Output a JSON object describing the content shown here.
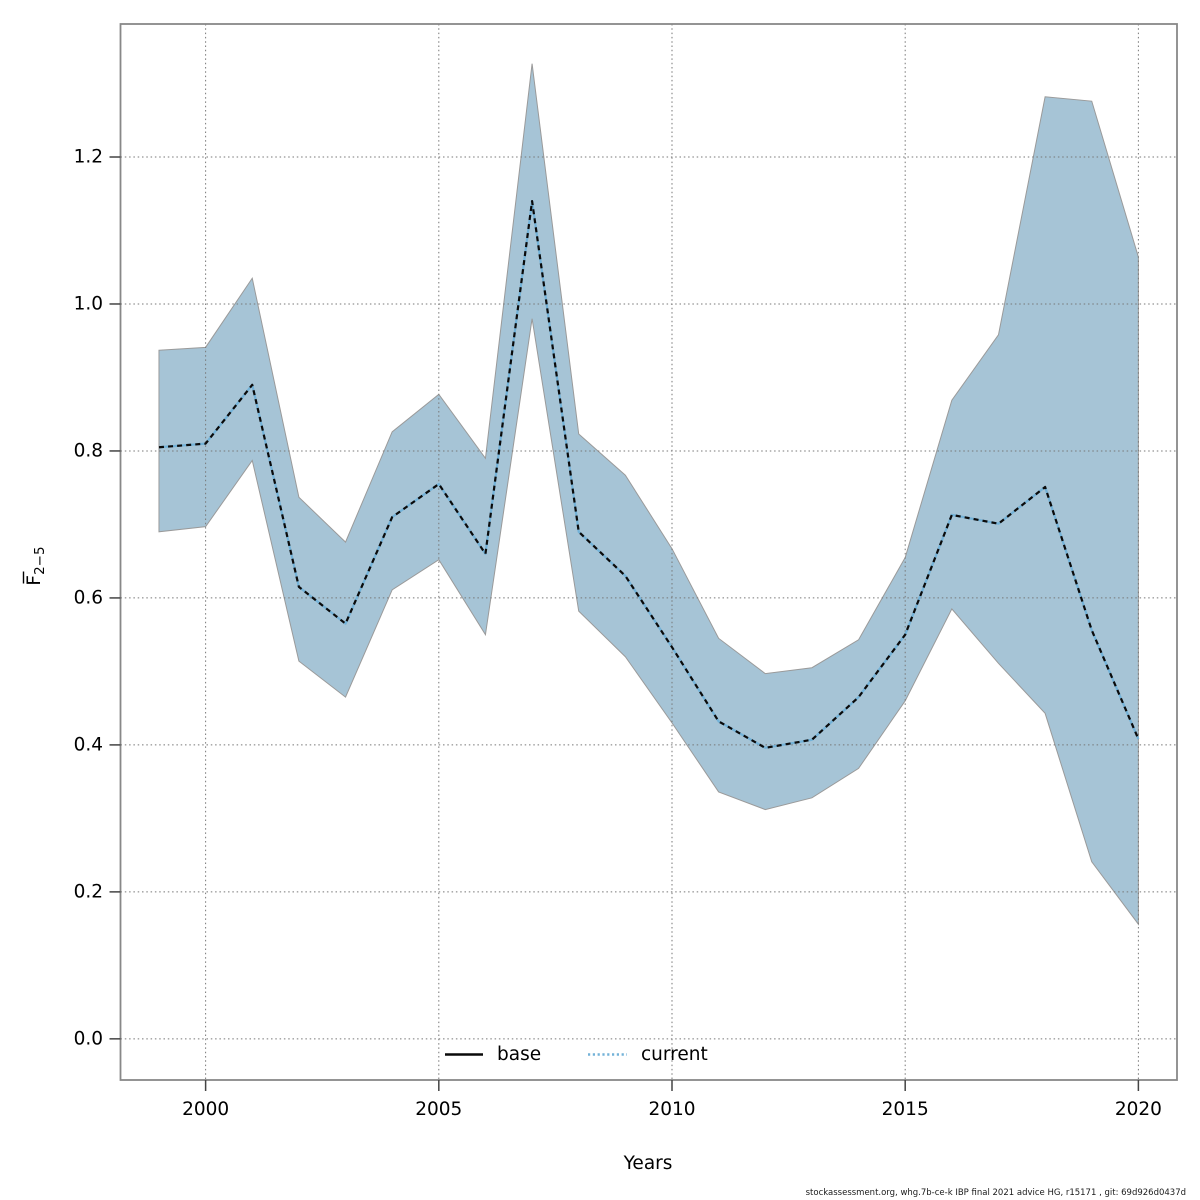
{
  "colors": {
    "band_fill": "#a6c4d6",
    "band_edge": "#9a9a9a",
    "current_line": "#73b2d8",
    "base_line": "#0a0a0a",
    "grid": "#777777",
    "spine": "#888888",
    "tick": "#444444",
    "text": "#000000"
  },
  "legend": {
    "base_label": "base",
    "current_label": "current"
  },
  "footer": {
    "text": "stockassessment.org, whg.7b-ce-k IBP final 2021 advice HG, r15171 , git: 69d926d0437d"
  },
  "chart_data": {
    "type": "line",
    "title": "",
    "xlabel": "Years",
    "ylabel": "F̄2−5",
    "ylabel_base": "F",
    "ylabel_subscript": "2−5",
    "x": [
      1999,
      2000,
      2001,
      2002,
      2003,
      2004,
      2005,
      2006,
      2007,
      2008,
      2009,
      2010,
      2011,
      2012,
      2013,
      2014,
      2015,
      2016,
      2017,
      2018,
      2019,
      2020
    ],
    "series": [
      {
        "name": "base",
        "style": "solid-black",
        "values": [
          0.805,
          0.81,
          0.89,
          0.615,
          0.565,
          0.71,
          0.755,
          0.66,
          1.14,
          0.69,
          0.63,
          0.533,
          0.432,
          0.396,
          0.407,
          0.465,
          0.55,
          0.713,
          0.701,
          0.751,
          0.556,
          0.408
        ]
      },
      {
        "name": "current",
        "style": "dashed-blue",
        "values": [
          0.805,
          0.81,
          0.89,
          0.615,
          0.565,
          0.71,
          0.755,
          0.66,
          1.14,
          0.69,
          0.63,
          0.533,
          0.432,
          0.396,
          0.407,
          0.465,
          0.55,
          0.713,
          0.701,
          0.751,
          0.556,
          0.408
        ]
      }
    ],
    "ci_lower": [
      0.69,
      0.697,
      0.787,
      0.514,
      0.465,
      0.611,
      0.652,
      0.55,
      0.98,
      0.582,
      0.52,
      0.43,
      0.336,
      0.312,
      0.328,
      0.368,
      0.46,
      0.585,
      0.511,
      0.443,
      0.241,
      0.156
    ],
    "ci_upper": [
      0.937,
      0.941,
      1.035,
      0.737,
      0.676,
      0.826,
      0.877,
      0.79,
      1.327,
      0.823,
      0.767,
      0.667,
      0.545,
      0.497,
      0.505,
      0.543,
      0.655,
      0.869,
      0.958,
      1.282,
      1.276,
      1.064
    ],
    "xticks": [
      {
        "value": 2000,
        "label": "2000"
      },
      {
        "value": 2005,
        "label": "2005"
      },
      {
        "value": 2010,
        "label": "2010"
      },
      {
        "value": 2015,
        "label": "2015"
      },
      {
        "value": 2020,
        "label": "2020"
      }
    ],
    "yticks": [
      {
        "value": 0.0,
        "label": "0.0"
      },
      {
        "value": 0.2,
        "label": "0.2"
      },
      {
        "value": 0.4,
        "label": "0.4"
      },
      {
        "value": 0.6,
        "label": "0.6"
      },
      {
        "value": 0.8,
        "label": "0.8"
      },
      {
        "value": 1.0,
        "label": "1.0"
      },
      {
        "value": 1.2,
        "label": "1.2"
      }
    ],
    "xlim": [
      1998.175,
      2020.828
    ],
    "ylim": [
      -0.056,
      1.381
    ],
    "grid": true,
    "legend_position": "bottom-center-inside"
  }
}
